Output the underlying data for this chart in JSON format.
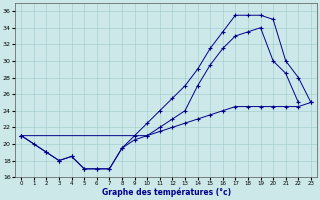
{
  "xlabel": "Graphe des températures (°c)",
  "background_color": "#cce8e8",
  "line_color": "#00008b",
  "xlim": [
    -0.5,
    23.5
  ],
  "ylim": [
    16,
    37
  ],
  "yticks": [
    16,
    18,
    20,
    22,
    24,
    26,
    28,
    30,
    32,
    34,
    36
  ],
  "xticks": [
    0,
    1,
    2,
    3,
    4,
    5,
    6,
    7,
    8,
    9,
    10,
    11,
    12,
    13,
    14,
    15,
    16,
    17,
    18,
    19,
    20,
    21,
    22,
    23
  ],
  "line1_x": [
    0,
    1,
    2,
    3,
    4,
    5,
    6,
    7,
    8,
    9,
    10,
    11,
    12,
    13,
    14,
    15,
    16,
    17,
    18,
    19,
    20,
    21,
    22
  ],
  "line1_y": [
    21,
    20,
    19,
    18,
    18.5,
    17,
    17,
    17,
    19.5,
    20.5,
    21,
    22,
    23,
    24,
    27,
    29.5,
    31.5,
    33,
    33.5,
    34,
    30,
    28.5,
    25
  ],
  "line2_x": [
    0,
    2,
    3,
    4,
    5,
    6,
    7,
    8,
    9,
    10,
    11,
    12,
    13,
    14,
    15,
    16,
    17,
    18,
    19,
    20,
    21,
    22,
    23
  ],
  "line2_y": [
    21,
    19,
    18,
    18.5,
    17,
    17,
    17,
    19.5,
    21,
    22.5,
    24,
    25.5,
    27,
    29,
    31.5,
    33.5,
    35.5,
    35.5,
    35.5,
    35,
    30,
    28,
    25
  ],
  "line3_x": [
    0,
    10,
    11,
    12,
    13,
    14,
    15,
    16,
    17,
    18,
    19,
    20,
    21,
    22,
    23
  ],
  "line3_y": [
    21,
    21,
    21.5,
    22,
    22.5,
    23,
    23.5,
    24,
    24.5,
    24.5,
    24.5,
    24.5,
    24.5,
    24.5,
    25
  ]
}
